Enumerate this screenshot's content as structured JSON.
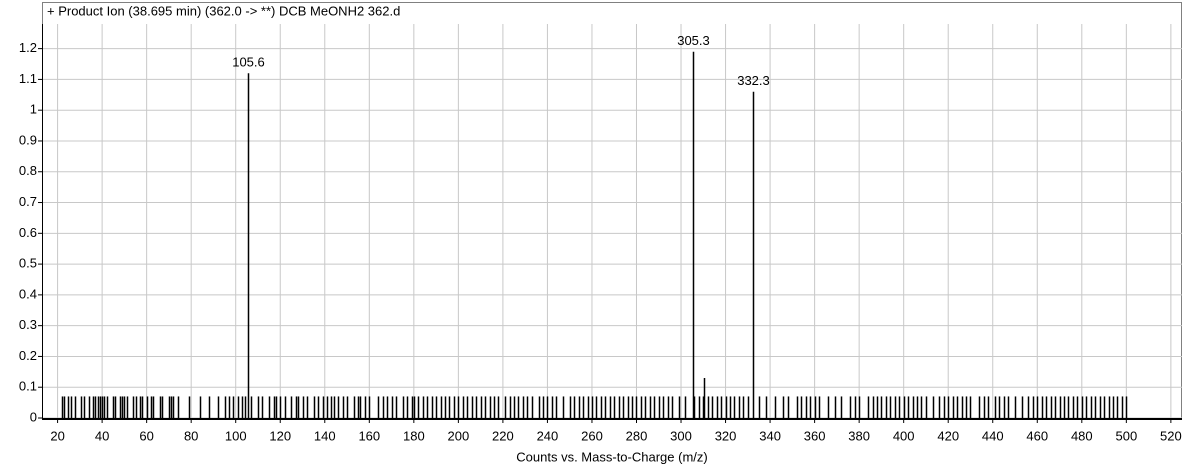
{
  "chart_data": {
    "type": "spectrum",
    "title": "+ Product Ion (38.695 min) (362.0 -> **) DCB MeONH2 362.d",
    "x_label": "Counts vs. Mass-to-Charge (m/z)",
    "xlim": [
      13,
      525
    ],
    "ylim": [
      0,
      1.28
    ],
    "xticks": [
      20,
      40,
      60,
      80,
      100,
      120,
      140,
      160,
      180,
      200,
      220,
      240,
      260,
      280,
      300,
      320,
      340,
      360,
      380,
      400,
      420,
      440,
      460,
      480,
      500,
      520
    ],
    "yticks": [
      0,
      0.1,
      0.2,
      0.3,
      0.4,
      0.5,
      0.6,
      0.7,
      0.8,
      0.9,
      1,
      1.1,
      1.2
    ],
    "grid": true,
    "series": [
      {
        "color": "#000000",
        "labels": true,
        "x": [
          105.6,
          305.3,
          332.3
        ],
        "values": [
          1.12,
          1.19,
          1.06
        ]
      },
      {
        "color": "#000000",
        "labels": false,
        "x": [
          22,
          23,
          24.5,
          26,
          28,
          30.5,
          32,
          34,
          36,
          37,
          38,
          39,
          40,
          41,
          42,
          45,
          46,
          48,
          49,
          50,
          51,
          54,
          55,
          57,
          58,
          60,
          62,
          63,
          66,
          67,
          70,
          71,
          72,
          74,
          79,
          84,
          88,
          92,
          95,
          97,
          99,
          101,
          103,
          104,
          107,
          110,
          112,
          115,
          117,
          118,
          120,
          122,
          125,
          127,
          128,
          130,
          132,
          135,
          137,
          139,
          141,
          143,
          144,
          146,
          148,
          150,
          153,
          155,
          156,
          158,
          160,
          164,
          166,
          168,
          170,
          172,
          175,
          177,
          179,
          180,
          182,
          184,
          186,
          188,
          190,
          192,
          194,
          196,
          198,
          200,
          202,
          204,
          206,
          208,
          210,
          212,
          214,
          216,
          218,
          221,
          223,
          225,
          227,
          229,
          231,
          233,
          236,
          238,
          240,
          242,
          244,
          247,
          250,
          252,
          254,
          256,
          258,
          260,
          262,
          264,
          266,
          268,
          270,
          272,
          274,
          276,
          278,
          280,
          282,
          284,
          286,
          288,
          290,
          292,
          294,
          296,
          299,
          302,
          306,
          308,
          310,
          312,
          314,
          316,
          318,
          320,
          322,
          324,
          326,
          328,
          330,
          335,
          338,
          342,
          346,
          348,
          352,
          354,
          356,
          358,
          360,
          362,
          366,
          369,
          372,
          376,
          378,
          380,
          384,
          386,
          388,
          390,
          392,
          394,
          396,
          398,
          400,
          402,
          404,
          406,
          408,
          410,
          413,
          416,
          418,
          420,
          422,
          424,
          426,
          428,
          430,
          434,
          436,
          438,
          441,
          443,
          445,
          447,
          450,
          453,
          456,
          458,
          460,
          462,
          464,
          466,
          468,
          470,
          472,
          474,
          476,
          478,
          480,
          482,
          484,
          486,
          488,
          490,
          492,
          494,
          496,
          498,
          500
        ],
        "values": [
          0.07,
          0.07,
          0.07,
          0.07,
          0.07,
          0.07,
          0.07,
          0.07,
          0.07,
          0.07,
          0.07,
          0.07,
          0.07,
          0.07,
          0.07,
          0.07,
          0.07,
          0.07,
          0.07,
          0.07,
          0.07,
          0.07,
          0.07,
          0.07,
          0.07,
          0.07,
          0.07,
          0.07,
          0.07,
          0.07,
          0.07,
          0.07,
          0.07,
          0.07,
          0.07,
          0.07,
          0.07,
          0.07,
          0.07,
          0.07,
          0.07,
          0.07,
          0.07,
          0.07,
          0.07,
          0.07,
          0.07,
          0.07,
          0.07,
          0.07,
          0.07,
          0.07,
          0.07,
          0.07,
          0.07,
          0.07,
          0.07,
          0.07,
          0.07,
          0.07,
          0.07,
          0.07,
          0.07,
          0.07,
          0.07,
          0.07,
          0.07,
          0.07,
          0.07,
          0.07,
          0.07,
          0.07,
          0.07,
          0.07,
          0.07,
          0.07,
          0.07,
          0.07,
          0.07,
          0.07,
          0.07,
          0.07,
          0.07,
          0.07,
          0.07,
          0.07,
          0.07,
          0.07,
          0.07,
          0.07,
          0.07,
          0.07,
          0.07,
          0.07,
          0.07,
          0.07,
          0.07,
          0.07,
          0.07,
          0.07,
          0.07,
          0.07,
          0.07,
          0.07,
          0.07,
          0.07,
          0.07,
          0.07,
          0.07,
          0.07,
          0.07,
          0.07,
          0.07,
          0.07,
          0.07,
          0.07,
          0.07,
          0.07,
          0.07,
          0.07,
          0.07,
          0.07,
          0.07,
          0.07,
          0.07,
          0.07,
          0.07,
          0.07,
          0.07,
          0.07,
          0.07,
          0.07,
          0.07,
          0.07,
          0.07,
          0.07,
          0.07,
          0.07,
          0.07,
          0.07,
          0.07,
          0.07,
          0.07,
          0.07,
          0.07,
          0.07,
          0.07,
          0.07,
          0.07,
          0.07,
          0.07,
          0.07,
          0.07,
          0.07,
          0.07,
          0.07,
          0.07,
          0.07,
          0.07,
          0.07,
          0.07,
          0.07,
          0.07,
          0.07,
          0.07,
          0.07,
          0.07,
          0.07,
          0.07,
          0.07,
          0.07,
          0.07,
          0.07,
          0.07,
          0.07,
          0.07,
          0.07,
          0.07,
          0.07,
          0.07,
          0.07,
          0.07,
          0.07,
          0.07,
          0.07,
          0.07,
          0.07,
          0.07,
          0.07,
          0.07,
          0.07,
          0.07,
          0.07,
          0.07,
          0.07,
          0.07,
          0.07,
          0.07,
          0.07,
          0.07,
          0.07,
          0.07,
          0.07,
          0.07,
          0.07,
          0.07,
          0.07,
          0.07,
          0.07,
          0.07,
          0.07,
          0.07,
          0.07,
          0.07,
          0.07,
          0.07,
          0.07,
          0.07,
          0.07,
          0.07,
          0.07,
          0.07,
          0.07
        ]
      },
      {
        "color": "#000000",
        "labels": false,
        "x": [
          310.5
        ],
        "values": [
          0.13
        ]
      }
    ]
  }
}
